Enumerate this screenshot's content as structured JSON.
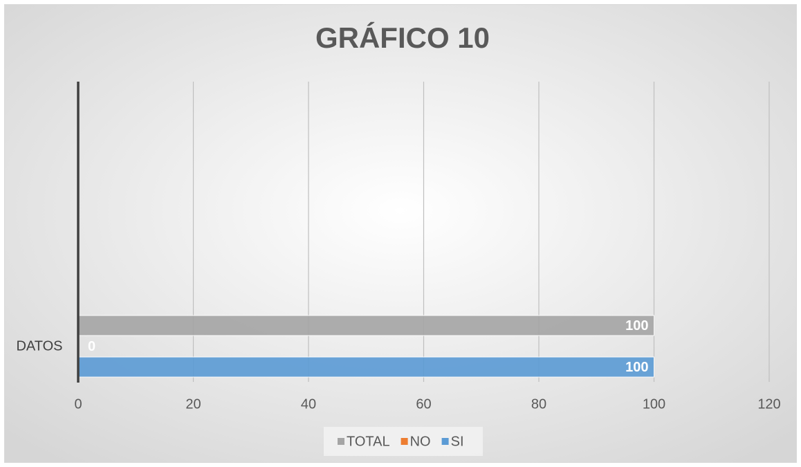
{
  "chart_data": {
    "type": "hbar",
    "title": "GRÁFICO 10",
    "categories": [
      "DATOS"
    ],
    "series": [
      {
        "name": "TOTAL",
        "color": "#a5a5a5",
        "values": [
          100
        ]
      },
      {
        "name": "NO",
        "color": "#ed7d31",
        "values": [
          0
        ]
      },
      {
        "name": "SI",
        "color": "#5b9bd5",
        "values": [
          100
        ]
      }
    ],
    "xlim": [
      0,
      120
    ],
    "xticks": [
      0,
      20,
      40,
      60,
      80,
      100,
      120
    ],
    "grid": true,
    "legend": "bottom"
  }
}
